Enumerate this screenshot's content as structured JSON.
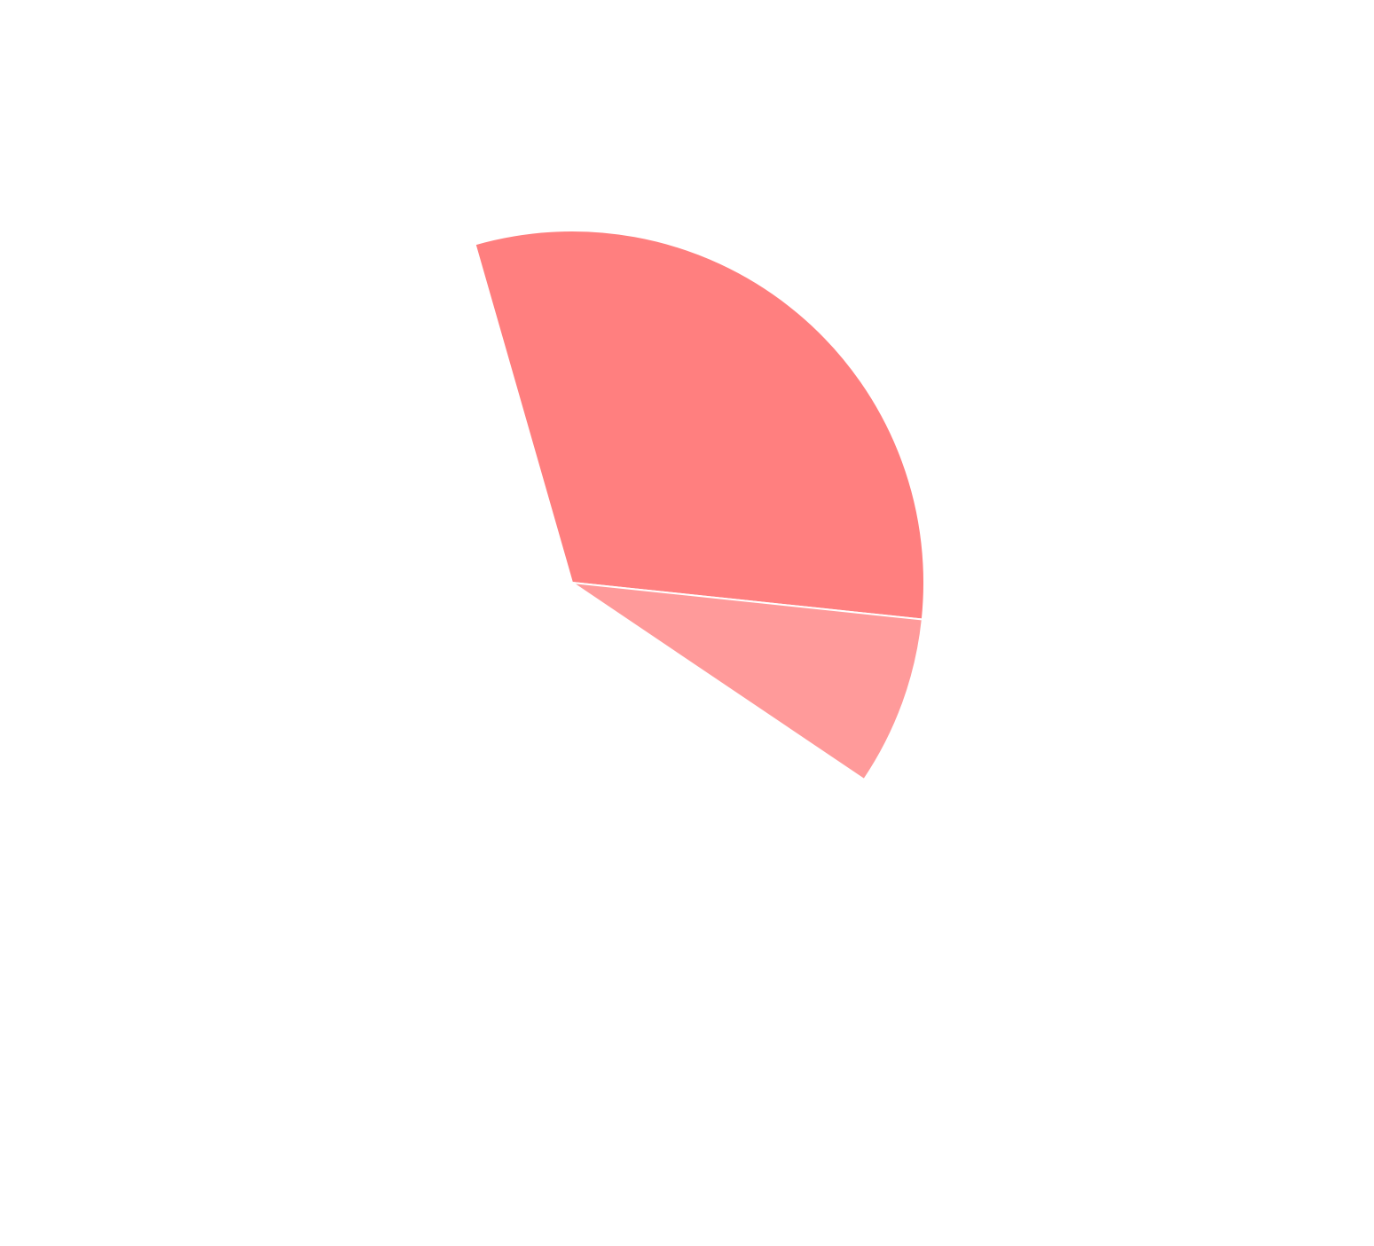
{
  "chart_data": {
    "type": "pie",
    "title": "",
    "start_angle_deg": -106,
    "direction": "clockwise",
    "slices": [
      {
        "label": "",
        "angle_deg": 112,
        "color": "#ff7f7f"
      },
      {
        "label": "",
        "angle_deg": 28,
        "color": "#ff9a9a"
      }
    ],
    "empty_remainder": true
  }
}
